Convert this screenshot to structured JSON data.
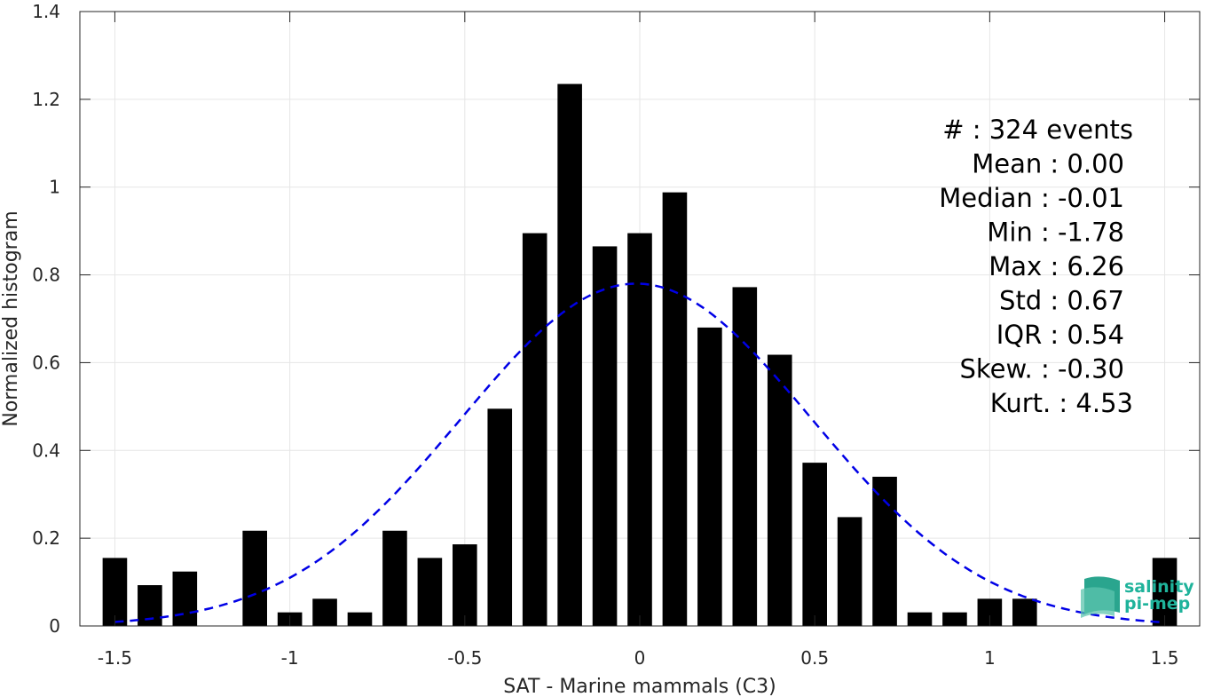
{
  "chart_data": {
    "type": "bar",
    "xlabel": "SAT - Marine mammals (C3)",
    "ylabel": "Normalized histogram",
    "xlim": [
      -1.6,
      1.6
    ],
    "ylim": [
      0,
      1.4
    ],
    "xticks": [
      -1.5,
      -1,
      -0.5,
      0,
      0.5,
      1,
      1.5
    ],
    "xtick_labels": [
      "-1.5",
      "-1",
      "-0.5",
      "0",
      "0.5",
      "1",
      "1.5"
    ],
    "yticks": [
      0,
      0.2,
      0.4,
      0.6,
      0.8,
      1,
      1.2,
      1.4
    ],
    "ytick_labels": [
      "0",
      "0.2",
      "0.4",
      "0.6",
      "0.8",
      "1",
      "1.2",
      "1.4"
    ],
    "grid": true,
    "bin_width": 0.1,
    "bars": [
      {
        "x": -1.5,
        "y": 0.155
      },
      {
        "x": -1.4,
        "y": 0.093
      },
      {
        "x": -1.3,
        "y": 0.124
      },
      {
        "x": -1.1,
        "y": 0.217
      },
      {
        "x": -1.0,
        "y": 0.031
      },
      {
        "x": -0.9,
        "y": 0.062
      },
      {
        "x": -0.8,
        "y": 0.031
      },
      {
        "x": -0.7,
        "y": 0.217
      },
      {
        "x": -0.6,
        "y": 0.155
      },
      {
        "x": -0.5,
        "y": 0.186
      },
      {
        "x": -0.4,
        "y": 0.495
      },
      {
        "x": -0.3,
        "y": 0.895
      },
      {
        "x": -0.2,
        "y": 1.235
      },
      {
        "x": -0.1,
        "y": 0.865
      },
      {
        "x": 0.0,
        "y": 0.895
      },
      {
        "x": 0.1,
        "y": 0.988
      },
      {
        "x": 0.2,
        "y": 0.68
      },
      {
        "x": 0.3,
        "y": 0.772
      },
      {
        "x": 0.4,
        "y": 0.618
      },
      {
        "x": 0.5,
        "y": 0.372
      },
      {
        "x": 0.6,
        "y": 0.248
      },
      {
        "x": 0.7,
        "y": 0.34
      },
      {
        "x": 0.8,
        "y": 0.031
      },
      {
        "x": 0.9,
        "y": 0.031
      },
      {
        "x": 1.0,
        "y": 0.062
      },
      {
        "x": 1.1,
        "y": 0.062
      },
      {
        "x": 1.5,
        "y": 0.155
      }
    ],
    "fit_curve": {
      "type": "gaussian",
      "mean": -0.01,
      "peak": 0.78,
      "sigma": 0.5,
      "x_range": [
        -1.5,
        1.5
      ],
      "style": "dashed",
      "color": "#0000e6"
    },
    "bar_color": "#000000",
    "stats": [
      "#  : 324 events",
      "Mean : 0.00",
      "Median : -0.01",
      "Min : -1.78",
      "Max : 6.26",
      "Std : 0.67",
      "IQR : 0.54",
      "Skew. : -0.30",
      "Kurt. : 4.53"
    ]
  },
  "logo": {
    "line1": "salinity",
    "line2": "pi-mep",
    "color": "#1fb39b"
  }
}
